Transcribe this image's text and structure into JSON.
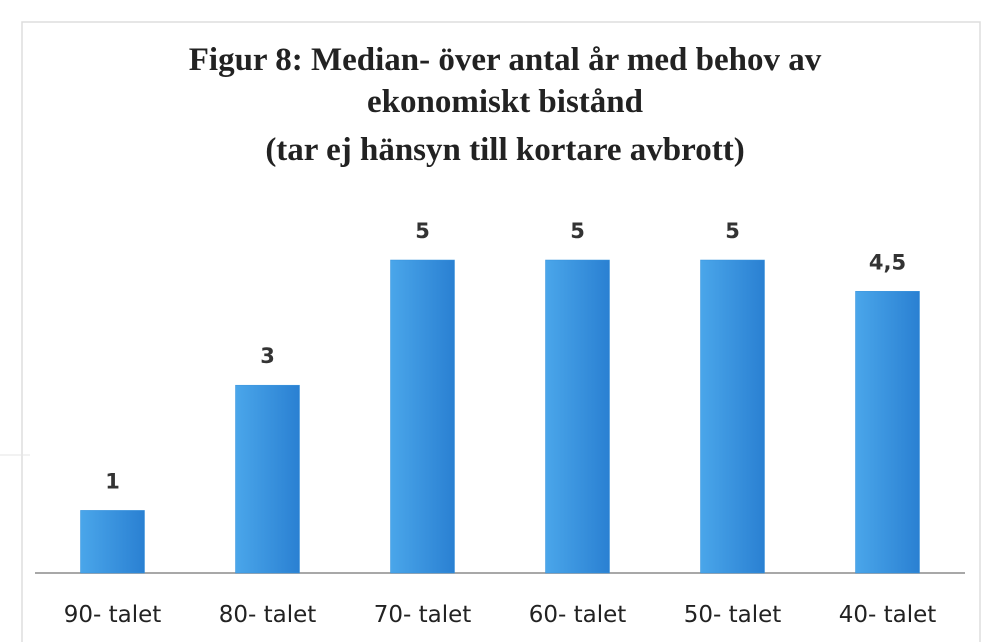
{
  "chart_data": {
    "type": "bar",
    "title": [
      "Figur 8: Median- över antal år med behov av",
      "ekonomiskt bistånd",
      "(tar ej hänsyn till kortare avbrott)"
    ],
    "categories": [
      "90- talet",
      "80- talet",
      "70- talet",
      "60- talet",
      "50- talet",
      "40- talet"
    ],
    "values": [
      1,
      3,
      5,
      5,
      5,
      4.5
    ],
    "value_labels": [
      "1",
      "3",
      "5",
      "5",
      "5",
      "4,5"
    ],
    "color": "#3692dc"
  }
}
